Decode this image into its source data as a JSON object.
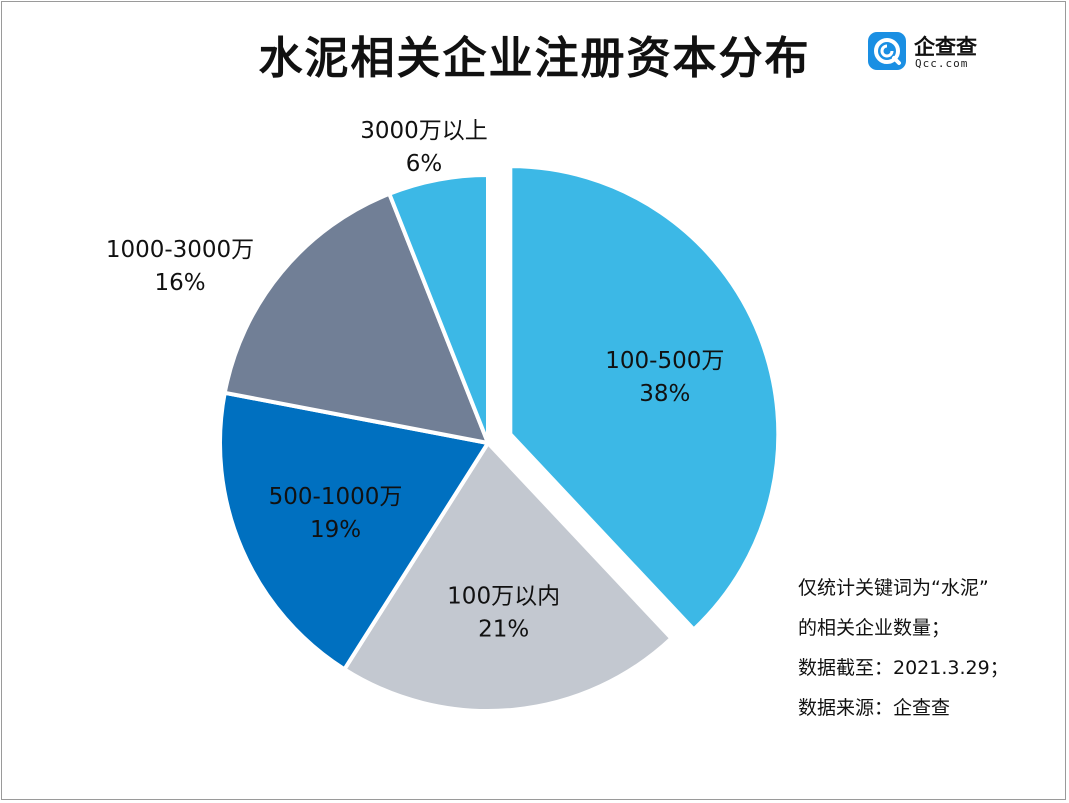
{
  "title": "水泥相关企业注册资本分布",
  "logo": {
    "name": "企查查",
    "domain": "Qcc.com",
    "icon": "qcc-logo-icon",
    "color": "#1a8fe3"
  },
  "chart_data": {
    "type": "pie",
    "title": "水泥相关企业注册资本分布",
    "start_angle_deg": 0,
    "direction": "clockwise",
    "exploded_slice": "100-500万",
    "slices": [
      {
        "label": "100-500万",
        "value": 38,
        "value_label": "38%",
        "color": "#3cb8e6"
      },
      {
        "label": "100万以内",
        "value": 21,
        "value_label": "21%",
        "color": "#c3c8d0"
      },
      {
        "label": "500-1000万",
        "value": 19,
        "value_label": "19%",
        "color": "#0070c0"
      },
      {
        "label": "1000-3000万",
        "value": 16,
        "value_label": "16%",
        "color": "#717f96"
      },
      {
        "label": "3000万以上",
        "value": 6,
        "value_label": "6%",
        "color": "#3cb8e6"
      }
    ]
  },
  "notes": [
    "仅统计关键词为“水泥”",
    "的相关企业数量；",
    "数据截至：2021.3.29；",
    "数据来源：企查查"
  ]
}
